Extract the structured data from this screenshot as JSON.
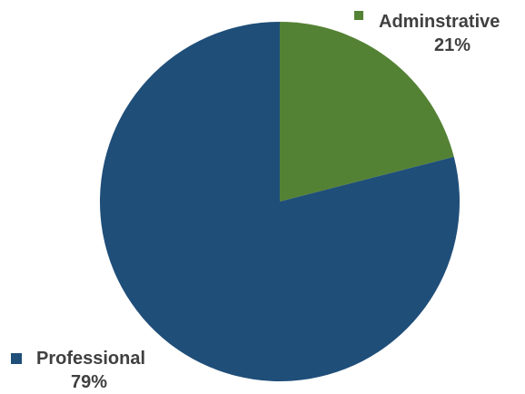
{
  "chart_data": {
    "type": "pie",
    "slices": [
      {
        "label": "Adminstrative",
        "value": 21,
        "value_label": "21%",
        "color": "#548235"
      },
      {
        "label": "Professional",
        "value": 79,
        "value_label": "79%",
        "color": "#1f4e79"
      }
    ]
  }
}
